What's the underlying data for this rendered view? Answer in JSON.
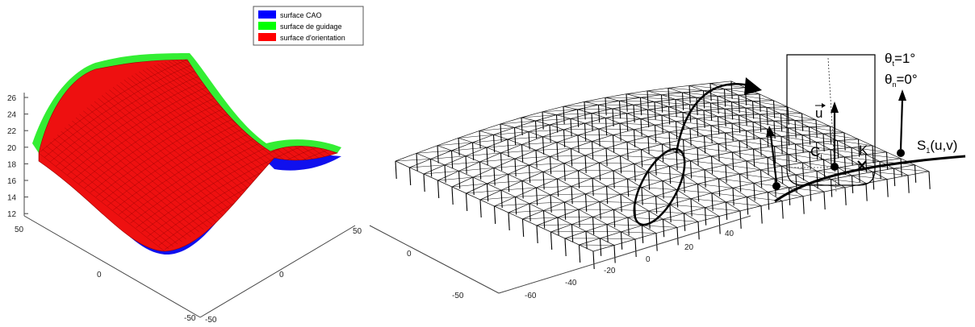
{
  "legend": {
    "entries": [
      {
        "label": "surface CAO",
        "color": "#0000ff"
      },
      {
        "label": "surface de guidage",
        "color": "#00ff00"
      },
      {
        "label": "surface d'orientation",
        "color": "#ff0000"
      }
    ]
  },
  "plot1": {
    "z_ticks": [
      "26",
      "24",
      "22",
      "20",
      "18",
      "16",
      "14",
      "12"
    ],
    "left_axis_ticks": [
      "50",
      "0",
      "-50"
    ],
    "right_axis_ticks": [
      "50",
      "0",
      "-50"
    ]
  },
  "plot2": {
    "left_axis_ticks": [
      "0",
      "-50"
    ],
    "right_axis_ticks": [
      "40",
      "20",
      "0",
      "-20",
      "-40",
      "-60"
    ]
  },
  "diagram": {
    "theta_t": {
      "symbol": "θ",
      "sub": "t",
      "value": "=1°"
    },
    "theta_n": {
      "symbol": "θ",
      "sub": "n",
      "value": "=0°"
    },
    "vector_u": "u",
    "cl": {
      "main": "C",
      "sub": "L"
    },
    "k": "K",
    "surface": {
      "main": "S",
      "sub": "1",
      "args": "(u,v)"
    }
  }
}
